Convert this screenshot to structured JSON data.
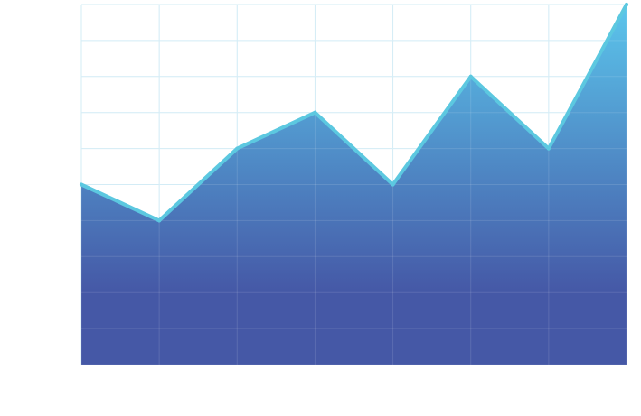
{
  "chart_data": {
    "type": "area",
    "x": [
      0,
      1,
      2,
      3,
      4,
      5,
      6,
      7
    ],
    "values": [
      5,
      4,
      6,
      7,
      5,
      8,
      6,
      10
    ],
    "title": "",
    "xlabel": "",
    "ylabel": "",
    "xlim": [
      0,
      7
    ],
    "ylim": [
      0,
      10
    ],
    "grid": true,
    "legend": "none",
    "colors": {
      "line": "#5cc8e0",
      "fill_top": "#5bc6ec",
      "fill_bottom": "#4558a6",
      "grid": "#cdeaf5",
      "axis": "#cdeaf5"
    }
  }
}
